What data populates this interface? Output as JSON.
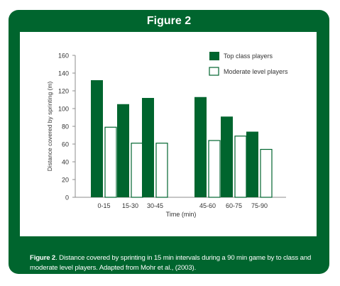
{
  "header": {
    "title": "Figure 2"
  },
  "caption": {
    "label": "Figure 2",
    "text": ". Distance covered by sprinting in 15 min intervals during a 90 min game by to class and moderate level players. Adapted from Mohr et al., (2003)."
  },
  "colors": {
    "frame": "#00652e",
    "top_class": "#00652e",
    "moderate_fill": "#ffffff",
    "moderate_stroke": "#00652e"
  },
  "chart_data": {
    "type": "bar",
    "title": "",
    "xlabel": "Time (min)",
    "ylabel": "Distance covered by sprinting (m)",
    "categories": [
      "0-15",
      "15-30",
      "30-45",
      "45-60",
      "60-75",
      "75-90"
    ],
    "series": [
      {
        "name": "Top class players",
        "values": [
          132,
          105,
          112,
          113,
          91,
          74
        ]
      },
      {
        "name": "Moderate level players",
        "values": [
          79,
          61,
          61,
          64,
          69,
          54
        ]
      }
    ],
    "ylim": [
      0,
      160
    ],
    "yticks": [
      0,
      20,
      40,
      60,
      80,
      100,
      120,
      140,
      160
    ],
    "grid": false,
    "legend": "top-right"
  }
}
